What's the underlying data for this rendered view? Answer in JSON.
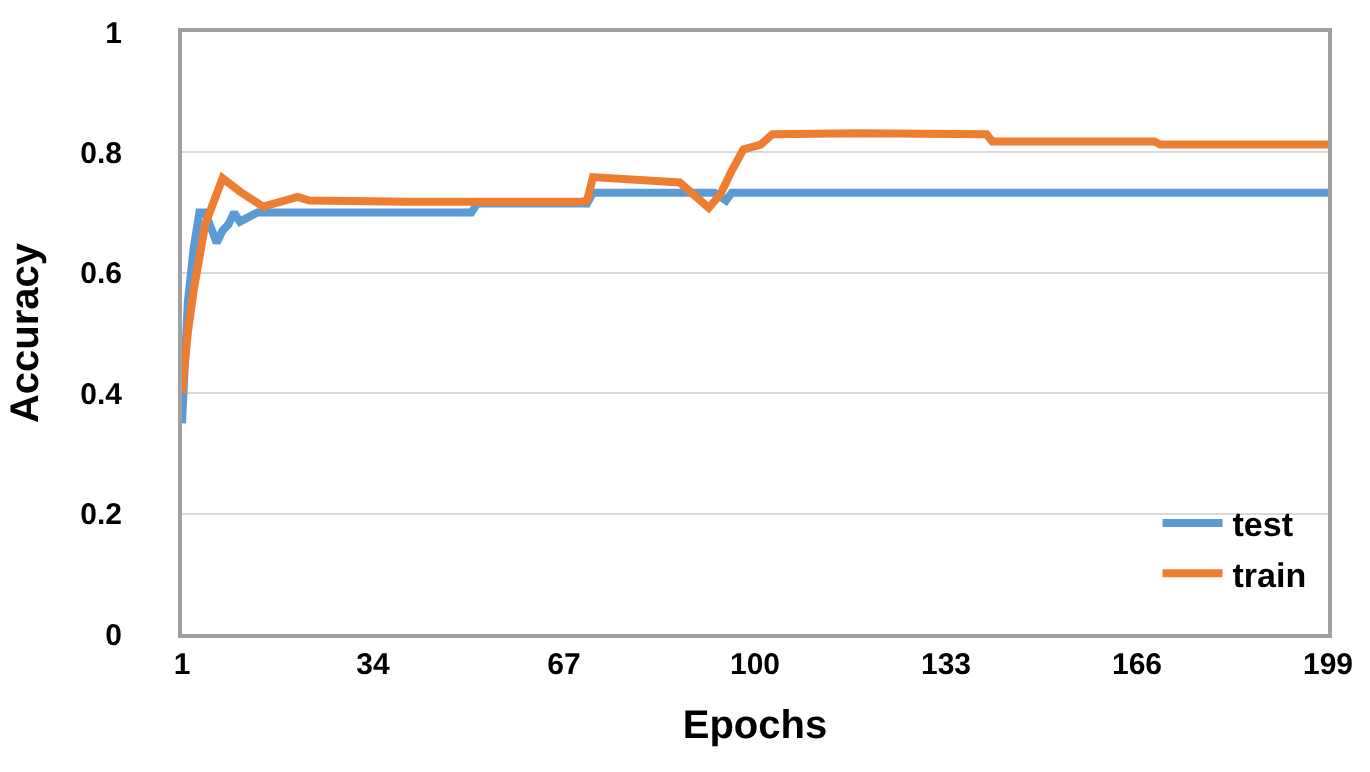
{
  "chart_data": {
    "type": "line",
    "xlabel": "Epochs",
    "ylabel": "Accuracy",
    "xlim": [
      1,
      199
    ],
    "xticks": [
      1,
      34,
      67,
      100,
      133,
      166,
      199
    ],
    "ylim": [
      0,
      1
    ],
    "yticks": [
      0,
      0.2,
      0.4,
      0.6,
      0.8,
      1
    ],
    "grid": "y",
    "legend": "bottom right",
    "marker": "none",
    "line_style": "solid",
    "series": [
      {
        "name": "test",
        "color": "#5b9bd5",
        "x": [
          1,
          2,
          3,
          4,
          5,
          7,
          8,
          9,
          10,
          11,
          12,
          14,
          30,
          51,
          52,
          71,
          72,
          93,
          95,
          96,
          120,
          199
        ],
        "values": [
          0.35,
          0.55,
          0.64,
          0.7,
          0.7,
          0.65,
          0.67,
          0.68,
          0.7,
          0.685,
          0.69,
          0.7,
          0.7,
          0.7,
          0.715,
          0.715,
          0.733,
          0.733,
          0.72,
          0.733,
          0.733,
          0.733
        ]
      },
      {
        "name": "train",
        "color": "#ed7d31",
        "x": [
          1,
          2,
          3,
          5,
          8,
          11,
          15,
          21,
          23,
          40,
          70,
          71,
          72,
          87,
          92,
          94,
          96,
          98,
          101,
          103,
          118,
          140,
          141,
          169,
          170,
          199
        ],
        "values": [
          0.4,
          0.5,
          0.57,
          0.68,
          0.757,
          0.735,
          0.71,
          0.726,
          0.72,
          0.718,
          0.718,
          0.72,
          0.759,
          0.75,
          0.708,
          0.73,
          0.77,
          0.805,
          0.813,
          0.83,
          0.832,
          0.83,
          0.818,
          0.818,
          0.813,
          0.813
        ]
      }
    ]
  }
}
